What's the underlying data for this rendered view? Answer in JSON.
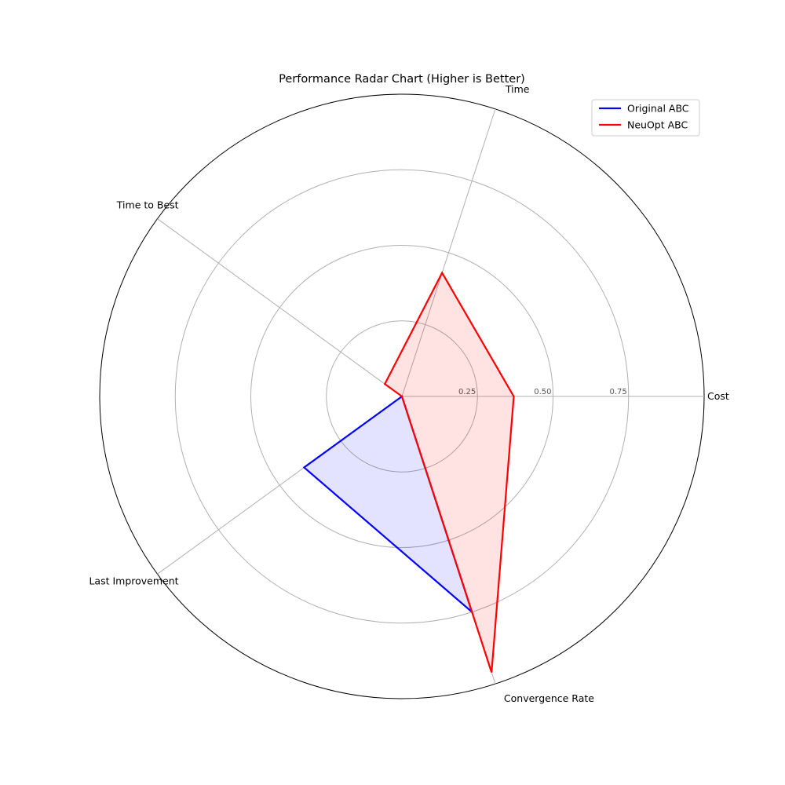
{
  "chart_data": {
    "type": "radar",
    "title": "Performance Radar Chart (Higher is Better)",
    "axes": [
      "Cost",
      "Time",
      "Time to Best",
      "Last Improvement",
      "Convergence Rate"
    ],
    "axis_angles_deg": [
      0,
      72,
      144,
      216,
      288
    ],
    "rlim": [
      0,
      1
    ],
    "rticks": [
      0.25,
      0.5,
      0.75
    ],
    "rtick_labels": [
      "0.25",
      "0.50",
      "0.75"
    ],
    "grid": true,
    "legend_position": "top-right",
    "series": [
      {
        "name": "Original ABC",
        "color": "#0000ff",
        "fill": "#0000ff",
        "values": [
          0.0,
          0.0,
          0.0,
          0.4,
          0.75
        ]
      },
      {
        "name": "NeuOpt ABC",
        "color": "#ff0000",
        "fill": "#ff0000",
        "values": [
          0.37,
          0.43,
          0.07,
          0.0,
          0.96
        ]
      }
    ]
  }
}
